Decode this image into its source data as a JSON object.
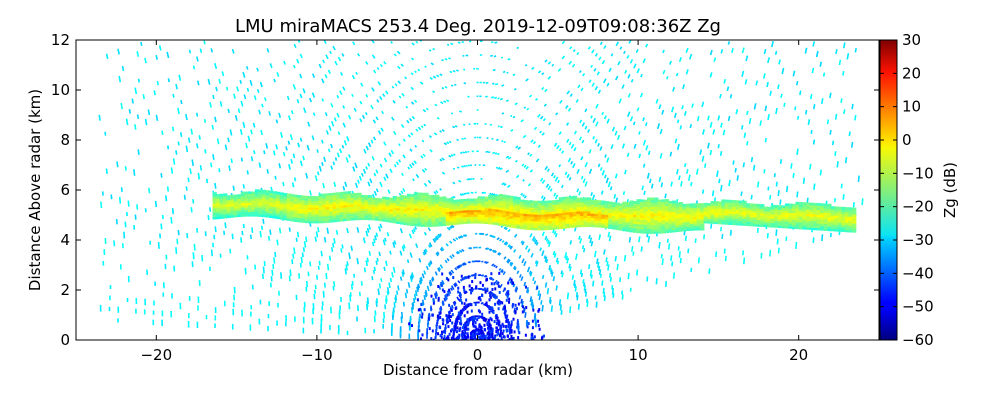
{
  "chart_data": {
    "type": "heatmap",
    "title": "LMU miraMACS 253.4 Deg. 2019-12-09T09:08:36Z  Zg",
    "xlabel": "Distance from radar (km)",
    "ylabel": "Distance Above radar  (km)",
    "xlim": [
      -25,
      25
    ],
    "ylim": [
      0,
      12
    ],
    "xticks": [
      "−20",
      "−10",
      "0",
      "10",
      "20"
    ],
    "xtick_values": [
      -20,
      -10,
      0,
      10,
      20
    ],
    "yticks": [
      "0",
      "2",
      "4",
      "6",
      "8",
      "10",
      "12"
    ],
    "ytick_values": [
      0,
      2,
      4,
      6,
      8,
      10,
      12
    ],
    "colorbar": {
      "label": "Zg (dB)",
      "range": [
        -60,
        30
      ],
      "ticks": [
        "30",
        "20",
        "10",
        "0",
        "−10",
        "−20",
        "−30",
        "−40",
        "−50",
        "−60"
      ],
      "tick_values": [
        30,
        20,
        10,
        0,
        -10,
        -20,
        -30,
        -40,
        -50,
        -60
      ],
      "colormap": "jet"
    },
    "scan": {
      "type": "RHI",
      "azimuth_deg": 253.4,
      "max_range_left_km": 24,
      "max_range_right_km": 23.6
    },
    "features": [
      {
        "name": "cloud_layer",
        "height_bottom_km": 4.3,
        "height_top_km": 5.9,
        "x_from_km": -16.5,
        "x_to_km": 23.5,
        "zg_dB_core": 0
      },
      {
        "name": "noise_background",
        "zg_dB_typical": -25
      },
      {
        "name": "near_radar_noise",
        "zg_dB_typical": -50
      }
    ]
  }
}
